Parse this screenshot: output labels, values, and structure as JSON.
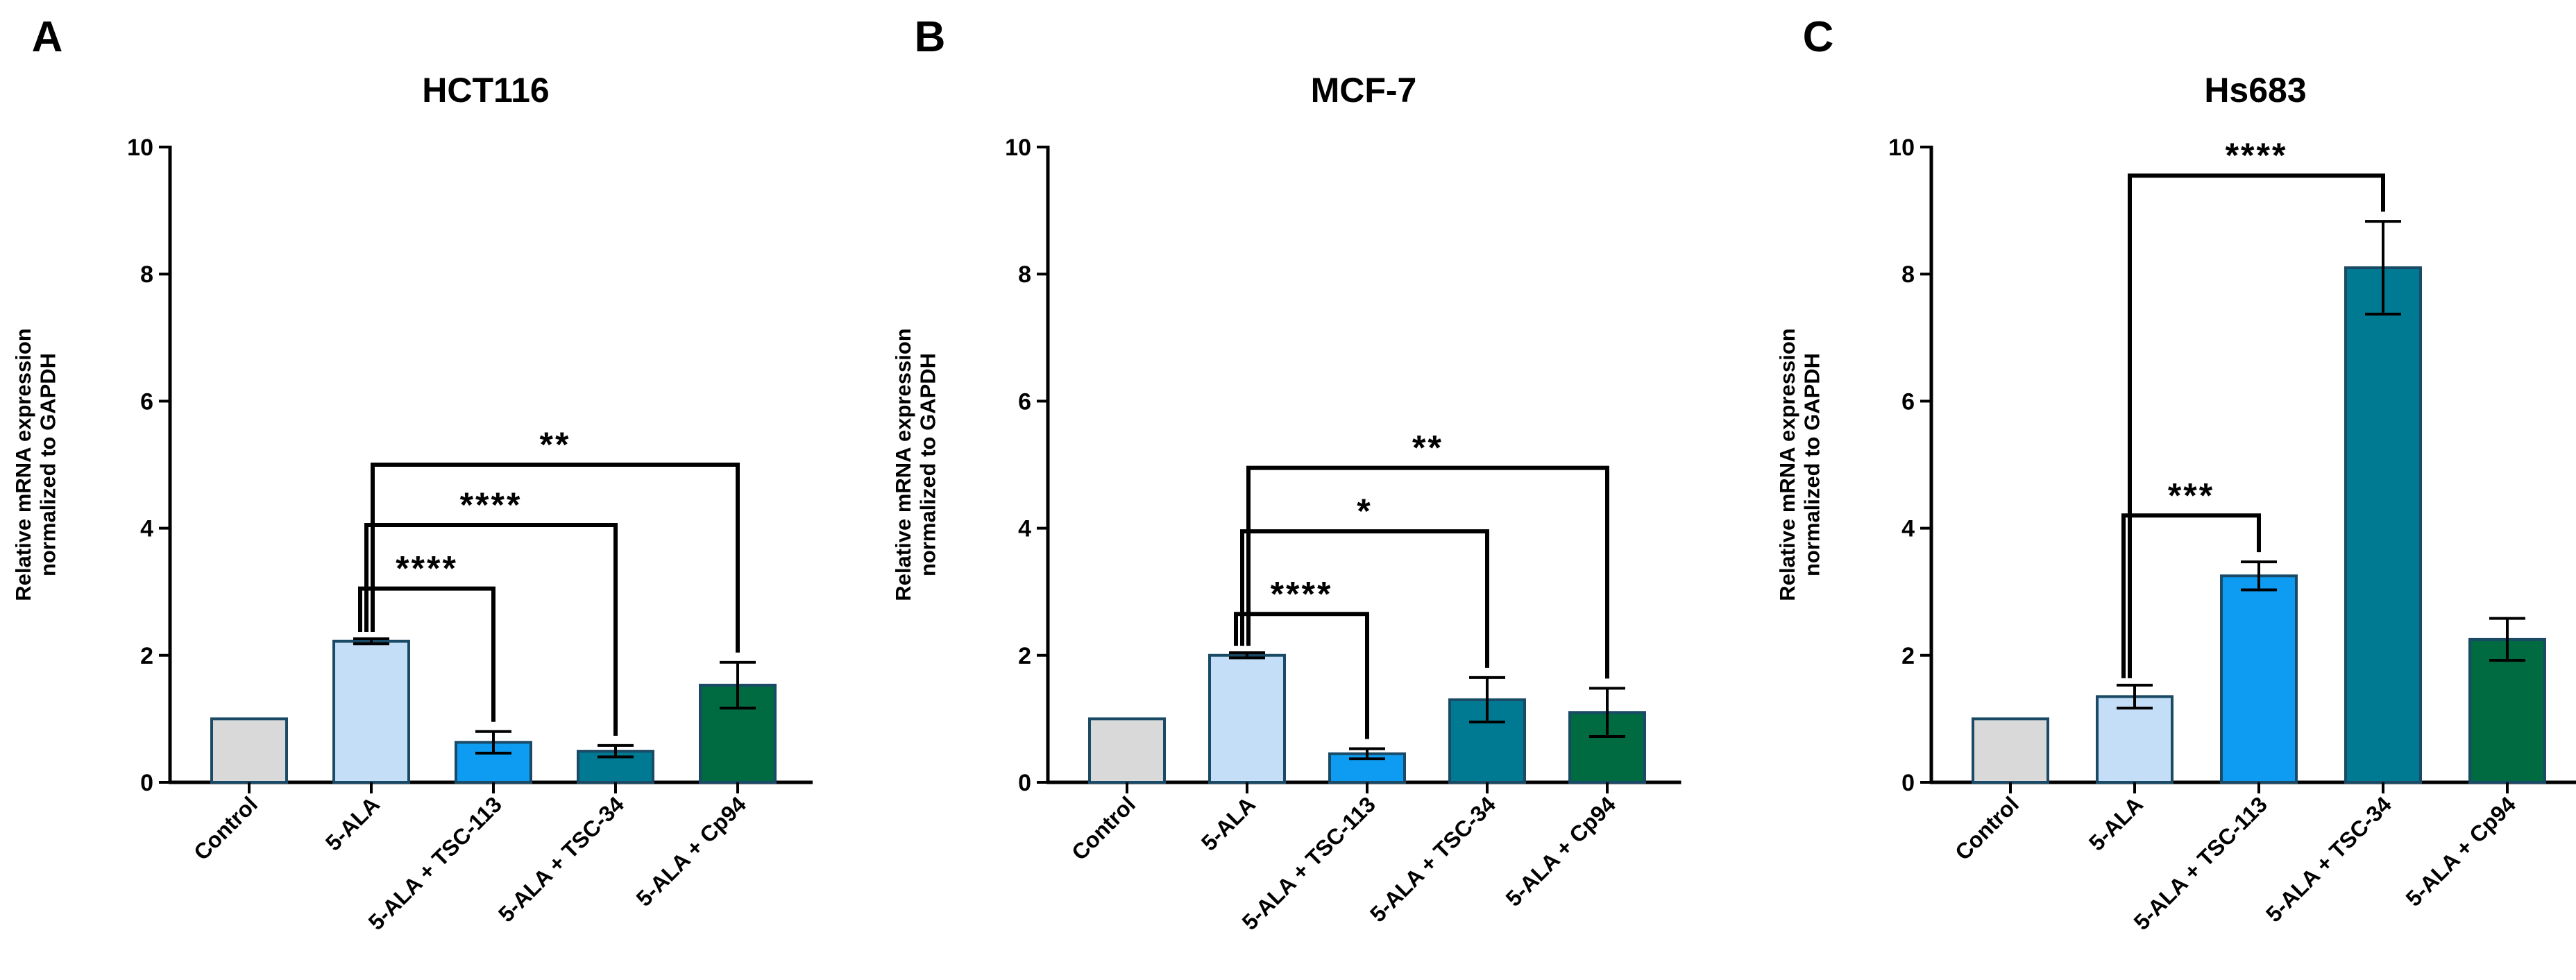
{
  "figure": {
    "ylabel_line1": "Relative mRNA expression",
    "ylabel_line2": "normalized to GAPDH"
  },
  "chart_data": [
    {
      "type": "bar",
      "letter": "A",
      "title": "HCT116",
      "ylabel": "Relative mRNA expression normalized to GAPDH",
      "ylim": [
        0,
        10
      ],
      "yticks": [
        0,
        2,
        4,
        6,
        8,
        10
      ],
      "ytick_labels": [
        "0",
        "2",
        "4",
        "6",
        "8",
        "10"
      ],
      "categories": [
        "Control",
        "5-ALA",
        "5-ALA + TSC-113",
        "5-ALA + TSC-34",
        "5-ALA + Cp94"
      ],
      "values": [
        1.0,
        2.22,
        0.63,
        0.49,
        1.53
      ],
      "errors": [
        0,
        0.04,
        0.17,
        0.09,
        0.36
      ],
      "colors": [
        "#d9d9d9",
        "#c5def7",
        "#0e9cf2",
        "#007a92",
        "#006a40"
      ],
      "significance": [
        {
          "from": 1,
          "to": 2,
          "label": "****",
          "y": 3.05
        },
        {
          "from": 1,
          "to": 3,
          "label": "****",
          "y": 4.05
        },
        {
          "from": 1,
          "to": 4,
          "label": "**",
          "y": 5.0
        }
      ]
    },
    {
      "type": "bar",
      "letter": "B",
      "title": "MCF-7",
      "ylabel": "Relative mRNA expression normalized to GAPDH",
      "ylim": [
        0,
        10
      ],
      "yticks": [
        0,
        2,
        4,
        6,
        8,
        10
      ],
      "ytick_labels": [
        "0",
        "2",
        "4",
        "6",
        "8",
        "10"
      ],
      "categories": [
        "Control",
        "5-ALA",
        "5-ALA + TSC-113",
        "5-ALA + TSC-34",
        "5-ALA + Cp94"
      ],
      "values": [
        1.0,
        2.0,
        0.45,
        1.3,
        1.1
      ],
      "errors": [
        0,
        0.04,
        0.08,
        0.35,
        0.38
      ],
      "colors": [
        "#d9d9d9",
        "#c5def7",
        "#0e9cf2",
        "#007a92",
        "#006a40"
      ],
      "significance": [
        {
          "from": 1,
          "to": 2,
          "label": "****",
          "y": 2.65
        },
        {
          "from": 1,
          "to": 3,
          "label": "*",
          "y": 3.95
        },
        {
          "from": 1,
          "to": 4,
          "label": "**",
          "y": 4.95
        }
      ]
    },
    {
      "type": "bar",
      "letter": "C",
      "title": "Hs683",
      "ylabel": "Relative mRNA expression normalized to GAPDH",
      "ylim": [
        0,
        10
      ],
      "yticks": [
        0,
        2,
        4,
        6,
        8,
        10
      ],
      "ytick_labels": [
        "0",
        "2",
        "4",
        "6",
        "8",
        "10"
      ],
      "categories": [
        "Control",
        "5-ALA",
        "5-ALA + TSC-113",
        "5-ALA + TSC-34",
        "5-ALA + Cp94"
      ],
      "values": [
        1.0,
        1.35,
        3.25,
        8.1,
        2.25
      ],
      "errors": [
        0,
        0.18,
        0.22,
        0.73,
        0.33
      ],
      "colors": [
        "#d9d9d9",
        "#c5def7",
        "#0e9cf2",
        "#007a92",
        "#006a40"
      ],
      "significance": [
        {
          "from": 1,
          "to": 2,
          "label": "***",
          "y": 4.2
        },
        {
          "from": 1,
          "to": 3,
          "label": "****",
          "y": 9.55
        }
      ]
    }
  ]
}
